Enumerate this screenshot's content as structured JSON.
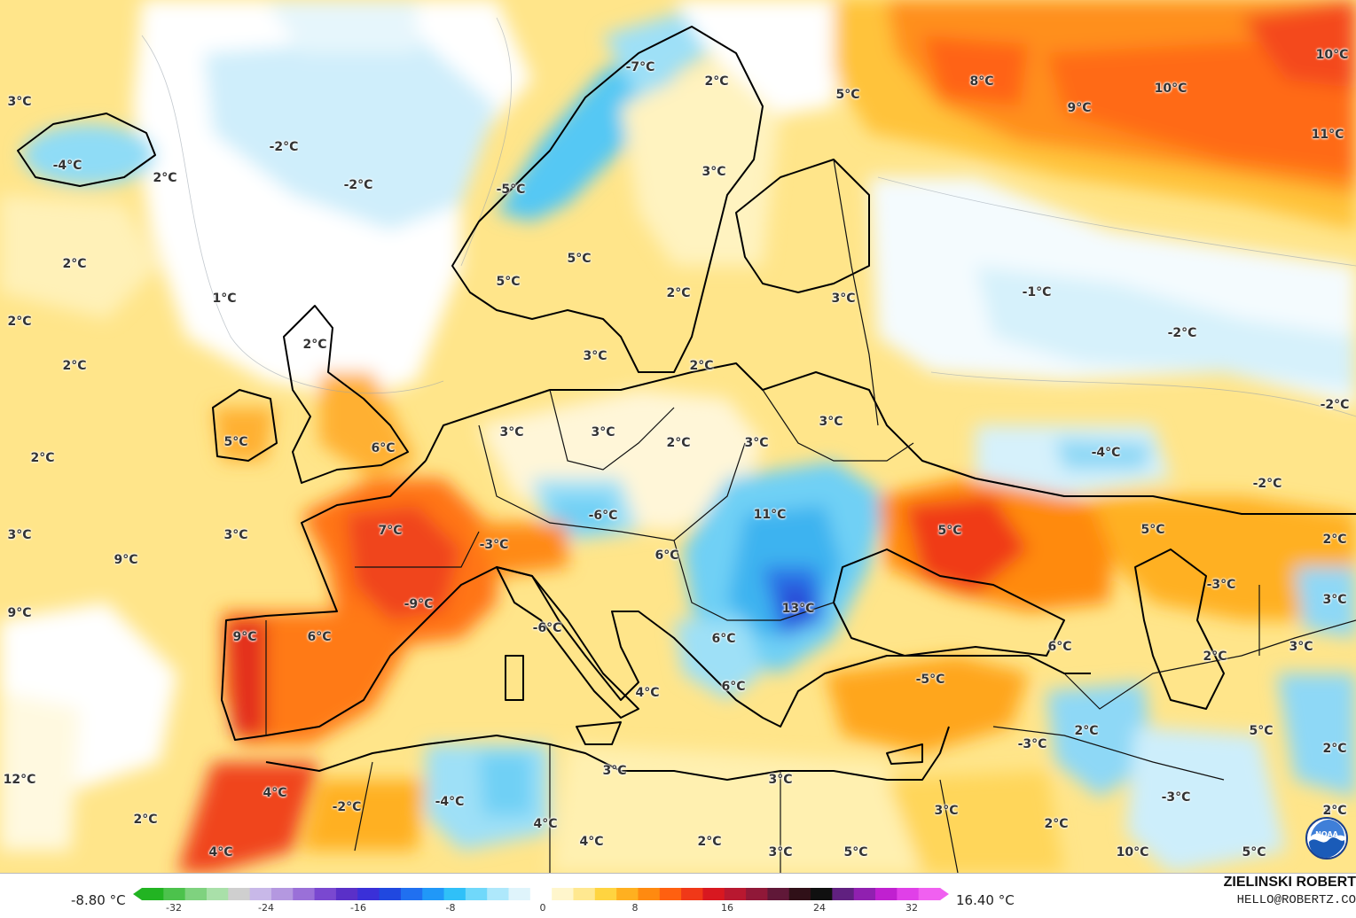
{
  "labels": [
    "3°C",
    "-4°C",
    "2°C",
    "-2°C",
    "-2°C",
    "-7°C",
    "2°C",
    "5°C",
    "8°C",
    "9°C",
    "10°C",
    "10°C",
    "11°C",
    "-5°C",
    "3°C",
    "5°C",
    "5°C",
    "2°C",
    "2°C",
    "1°C",
    "2°C",
    "2°C",
    "3°C",
    "-1°C",
    "-2°C",
    "-2°C",
    "2°C",
    "3°C",
    "2°C",
    "3°C",
    "5°C",
    "6°C",
    "3°C",
    "3°C",
    "2°C",
    "3°C",
    "-4°C",
    "-2°C",
    "2°C",
    "3°C",
    "3°C",
    "9°C",
    "7°C",
    "-3°C",
    "-6°C",
    "11°C",
    "5°C",
    "5°C",
    "2°C",
    "6°C",
    "-3°C",
    "3°C",
    "9°C",
    "-9°C",
    "13°C",
    "9°C",
    "6°C",
    "-6°C",
    "6°C",
    "6°C",
    "2°C",
    "3°C",
    "4°C",
    "6°C",
    "-5°C",
    "2°C",
    "5°C",
    "-3°C",
    "2°C",
    "12°C",
    "3°C",
    "3°C",
    "-3°C",
    "2°C",
    "4°C",
    "-2°C",
    "-4°C",
    "4°C",
    "3°C",
    "4°C",
    "2°C",
    "2°C",
    "10°C",
    "4°C",
    "3°C",
    "3°C",
    "5°C",
    "2°C",
    "5°C"
  ],
  "colorbar": {
    "min_label": "-8.80 °C",
    "max_label": "16.40 °C",
    "ticks": [
      "-32",
      "-24",
      "-16",
      "-8",
      "0",
      "8",
      "16",
      "24",
      "32"
    ],
    "colors": [
      "#22b422",
      "#4cc24c",
      "#7fd27f",
      "#a9e0a9",
      "#cfcfcf",
      "#c8b8e8",
      "#b498e0",
      "#9a70d8",
      "#7a48d0",
      "#5a30c8",
      "#3a30d8",
      "#2048e0",
      "#2070f0",
      "#2098f8",
      "#30c0f8",
      "#70d8fa",
      "#aee8fb",
      "#dff4fb",
      "#ffffff",
      "#fff6cc",
      "#ffe890",
      "#ffd440",
      "#ffb020",
      "#ff8a10",
      "#ff6010",
      "#f03818",
      "#d81820",
      "#b81830",
      "#901838",
      "#601838",
      "#301018",
      "#101010",
      "#602080",
      "#9020b0",
      "#c020d0",
      "#e040e8",
      "#f060f0"
    ]
  },
  "credit": {
    "name": "ZIELINSKI ROBERT",
    "email": "HELLO@ROBERTZ.CO"
  },
  "logo_text": "NOAA"
}
